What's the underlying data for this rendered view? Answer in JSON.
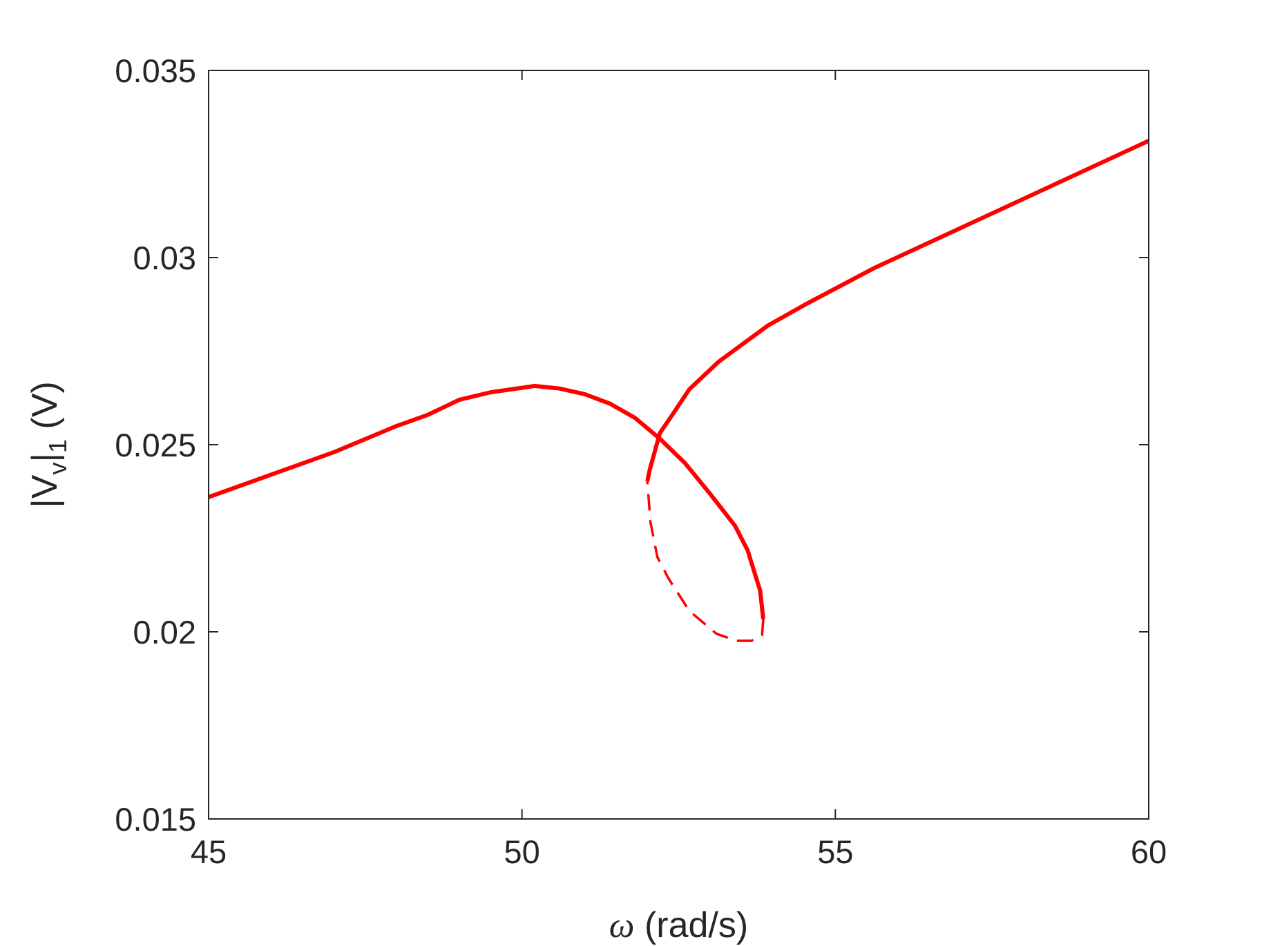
{
  "chart_data": {
    "type": "line",
    "xlabel": [
      "ω",
      " (rad/s)"
    ],
    "ylabel": [
      "|V",
      "v",
      "|",
      "1",
      " (V)"
    ],
    "xlim": [
      45,
      60
    ],
    "ylim": [
      0.015,
      0.035
    ],
    "xticks": [
      45,
      50,
      55,
      60
    ],
    "yticks": [
      0.015,
      0.02,
      0.025,
      0.03,
      0.035
    ],
    "grid": false,
    "series": [
      {
        "color": "#ff0000",
        "style": "solid",
        "x": [
          45,
          46,
          47,
          48,
          48.5,
          49,
          49.5,
          50,
          50.2,
          50.6,
          51,
          51.4,
          51.8,
          52.2,
          52.6,
          53,
          53.4,
          53.6,
          53.8,
          53.85
        ],
        "values": [
          0.0236,
          0.0242,
          0.0248,
          0.0255,
          0.0258,
          0.0262,
          0.0264,
          0.02652,
          0.02657,
          0.0265,
          0.02635,
          0.0261,
          0.02572,
          0.02516,
          0.02451,
          0.02369,
          0.02283,
          0.02218,
          0.0211,
          0.02034
        ]
      },
      {
        "color": "#ff0000",
        "style": "dashed",
        "x": [
          53.85,
          53.83,
          53.66,
          53.42,
          53.1,
          52.67,
          52.34,
          52.16,
          52.05,
          52.0
        ],
        "values": [
          0.02034,
          0.0199,
          0.01976,
          0.01976,
          0.01995,
          0.02056,
          0.02142,
          0.022,
          0.02293,
          0.02402
        ]
      },
      {
        "color": "#ff0000",
        "style": "solid",
        "x": [
          52.0,
          52.04,
          52.2,
          52.42,
          52.67,
          53.14,
          53.93,
          54.58,
          55.62,
          60
        ],
        "values": [
          0.02402,
          0.02434,
          0.02531,
          0.02585,
          0.02648,
          0.02722,
          0.02819,
          0.0288,
          0.02972,
          0.03312
        ]
      }
    ]
  }
}
